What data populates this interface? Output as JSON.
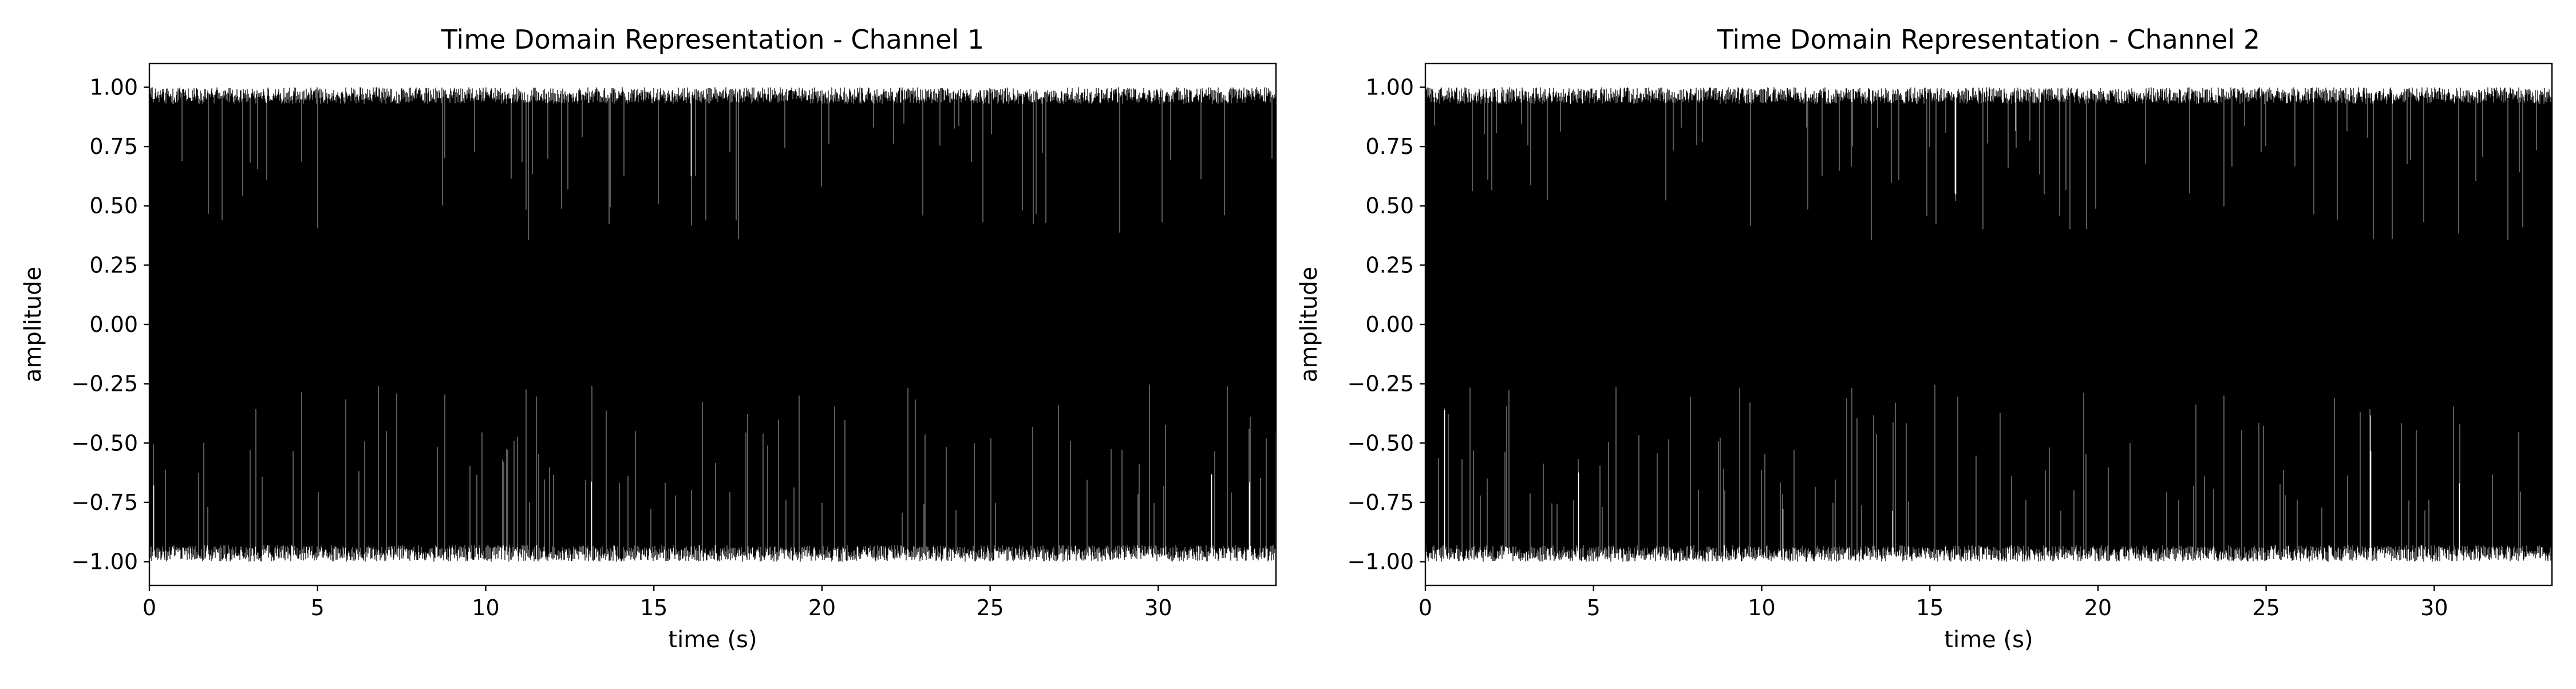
{
  "figure": {
    "background": "#ffffff"
  },
  "chart_data": [
    {
      "type": "line",
      "title": "Time Domain Representation - Channel 1",
      "xlabel": "time (s)",
      "ylabel": "amplitude",
      "xlim": [
        0,
        33.5
      ],
      "ylim": [
        -1.1,
        1.1
      ],
      "x_ticks": [
        0,
        5,
        10,
        15,
        20,
        25,
        30
      ],
      "x_tick_labels": [
        "0",
        "5",
        "10",
        "15",
        "20",
        "25",
        "30"
      ],
      "y_ticks": [
        1.0,
        0.75,
        0.5,
        0.25,
        0.0,
        -0.25,
        -0.5,
        -0.75,
        -1.0
      ],
      "y_tick_labels": [
        "1.00",
        "0.75",
        "0.50",
        "0.25",
        "0.00",
        "−0.25",
        "−0.50",
        "−0.75",
        "−1.00"
      ],
      "grid": false,
      "line_color": "#000000",
      "series": [
        {
          "signal": "dense oscillating audio waveform",
          "amplitude_range": [
            -1.0,
            1.0
          ],
          "x_range": [
            0,
            33.5
          ]
        }
      ]
    },
    {
      "type": "line",
      "title": "Time Domain Representation - Channel 2",
      "xlabel": "time (s)",
      "ylabel": "amplitude",
      "xlim": [
        0,
        33.5
      ],
      "ylim": [
        -1.1,
        1.1
      ],
      "x_ticks": [
        0,
        5,
        10,
        15,
        20,
        25,
        30
      ],
      "x_tick_labels": [
        "0",
        "5",
        "10",
        "15",
        "20",
        "25",
        "30"
      ],
      "y_ticks": [
        1.0,
        0.75,
        0.5,
        0.25,
        0.0,
        -0.25,
        -0.5,
        -0.75,
        -1.0
      ],
      "y_tick_labels": [
        "1.00",
        "0.75",
        "0.50",
        "0.25",
        "0.00",
        "−0.25",
        "−0.50",
        "−0.75",
        "−1.00"
      ],
      "grid": false,
      "line_color": "#000000",
      "series": [
        {
          "signal": "dense oscillating audio waveform",
          "amplitude_range": [
            -1.0,
            1.0
          ],
          "x_range": [
            0,
            33.5
          ]
        }
      ]
    }
  ]
}
